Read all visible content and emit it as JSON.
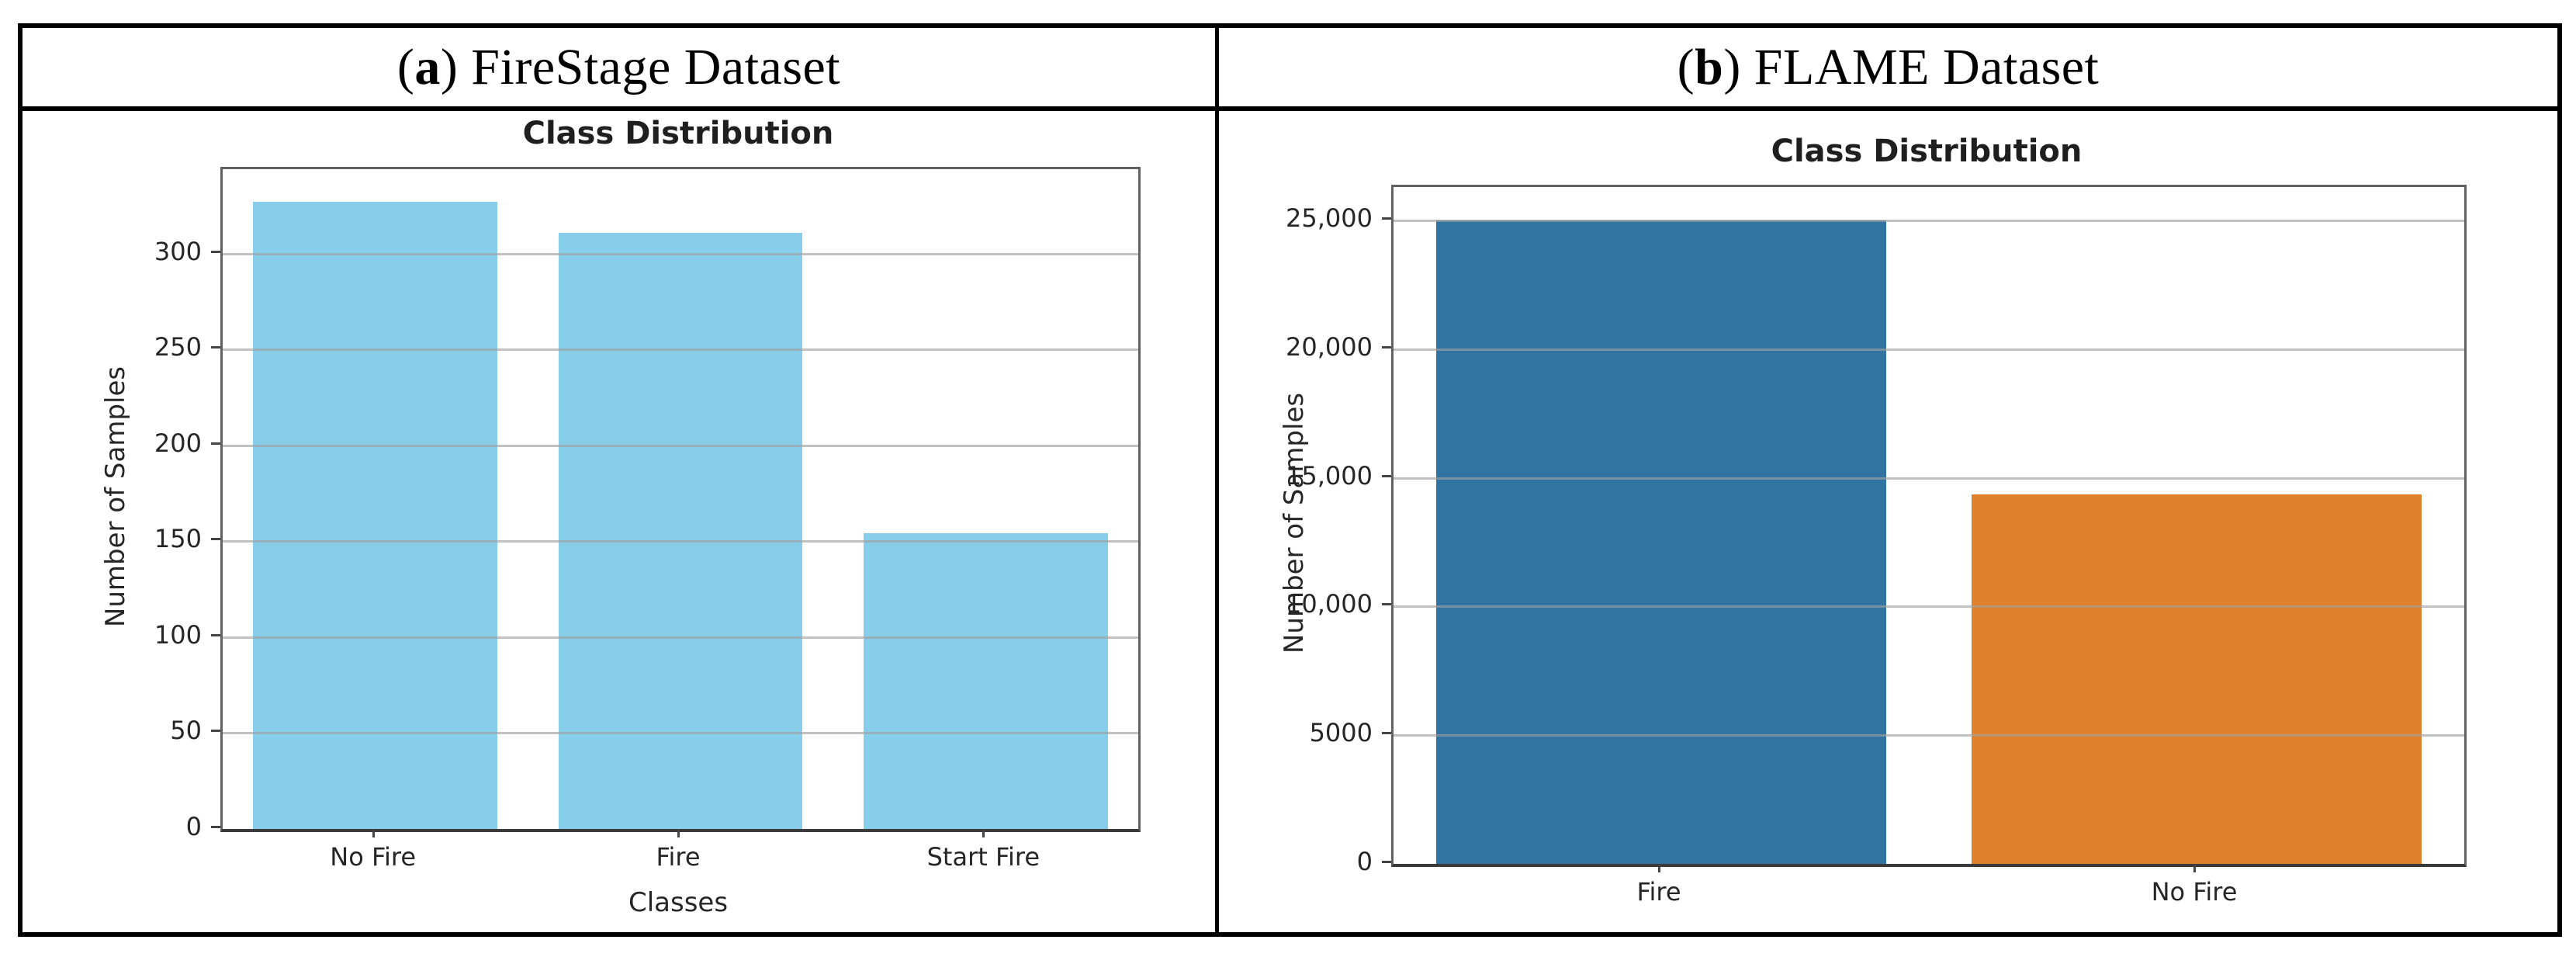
{
  "figure": {
    "panels": [
      {
        "label_open": "(",
        "label_letter": "a",
        "label_close": ")",
        "title_rest": " FireStage Dataset"
      },
      {
        "label_open": "(",
        "label_letter": "b",
        "label_close": ")",
        "title_rest": " FLAME Dataset"
      }
    ]
  },
  "colors": {
    "table_border": "#000000",
    "skyblue_bar": "#87ceeb",
    "blue_bar": "#3274a1",
    "orange_bar": "#e1812c",
    "gridline": "#a0a0a0",
    "spine": "#616161",
    "text": "#262626"
  },
  "chart_data": [
    {
      "type": "bar",
      "title": "Class Distribution",
      "xlabel": "Classes",
      "ylabel": "Number of Samples",
      "categories": [
        "No Fire",
        "Fire",
        "Start Fire"
      ],
      "values": [
        327,
        311,
        154
      ],
      "bar_colors": [
        "#87ceeb",
        "#87ceeb",
        "#87ceeb"
      ],
      "yticks": [
        0,
        50,
        100,
        150,
        200,
        250,
        300
      ],
      "ytick_labels": [
        "0",
        "50",
        "100",
        "150",
        "200",
        "250",
        "300"
      ],
      "ylim": [
        0,
        344
      ],
      "grid": true,
      "legend": null
    },
    {
      "type": "bar",
      "title": "Class Distribution",
      "xlabel": "",
      "ylabel": "Number of Samples",
      "categories": [
        "Fire",
        "No Fire"
      ],
      "values": [
        25000,
        14350
      ],
      "bar_colors": [
        "#3274a1",
        "#e1812c"
      ],
      "yticks": [
        0,
        5000,
        10000,
        15000,
        20000,
        25000
      ],
      "ytick_labels": [
        "0",
        "5000",
        "10,000",
        "15,000",
        "20,000",
        "25,000"
      ],
      "ylim": [
        0,
        26300
      ],
      "grid": true,
      "legend": null
    }
  ]
}
